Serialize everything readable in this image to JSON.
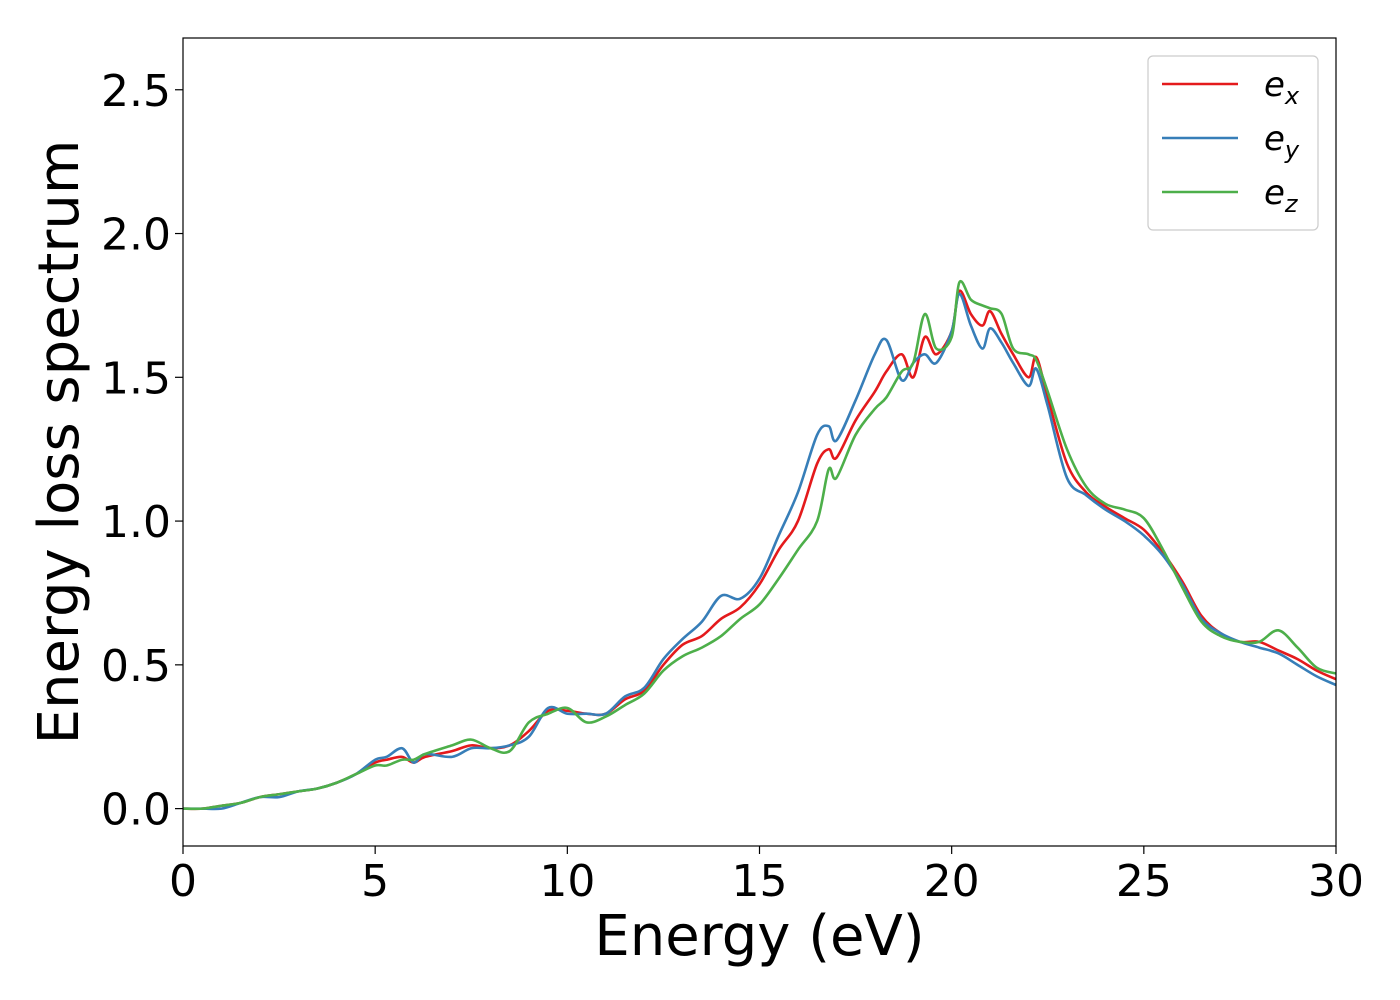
{
  "chart_data": {
    "type": "line",
    "title": "",
    "xlabel": "Energy (eV)",
    "ylabel": "Energy loss spectrum",
    "xlim": [
      0,
      30
    ],
    "ylim": [
      -0.13,
      2.68
    ],
    "xticks": [
      0,
      5,
      10,
      15,
      20,
      25,
      30
    ],
    "xtick_labels": [
      "0",
      "5",
      "10",
      "15",
      "20",
      "25",
      "30"
    ],
    "yticks": [
      0.0,
      0.5,
      1.0,
      1.5,
      2.0,
      2.5
    ],
    "ytick_labels": [
      "0.0",
      "0.5",
      "1.0",
      "1.5",
      "2.0",
      "2.5"
    ],
    "grid": false,
    "legend_position": "top-right",
    "series": [
      {
        "name": "e",
        "subscript": "x",
        "color": "#e41a1c",
        "x": [
          0,
          0.5,
          1,
          1.5,
          2,
          2.5,
          3,
          3.5,
          4,
          4.5,
          5,
          5.3,
          5.7,
          6,
          6.3,
          7,
          7.5,
          8,
          8.5,
          9,
          9.5,
          10,
          10.5,
          11,
          11.5,
          12,
          12.5,
          13,
          13.5,
          14,
          14.5,
          15,
          15.5,
          16,
          16.5,
          16.8,
          17,
          17.5,
          18,
          18.3,
          18.7,
          19,
          19.3,
          19.6,
          20,
          20.2,
          20.5,
          20.8,
          21,
          21.3,
          21.6,
          22,
          22.2,
          22.5,
          23,
          23.5,
          24,
          24.5,
          25,
          25.5,
          26,
          26.5,
          27,
          27.5,
          28,
          28.5,
          29,
          29.5,
          30
        ],
        "y": [
          0.0,
          0.0,
          0.01,
          0.02,
          0.04,
          0.05,
          0.06,
          0.07,
          0.09,
          0.12,
          0.16,
          0.17,
          0.18,
          0.16,
          0.18,
          0.2,
          0.22,
          0.21,
          0.22,
          0.27,
          0.34,
          0.34,
          0.33,
          0.33,
          0.38,
          0.41,
          0.5,
          0.57,
          0.6,
          0.66,
          0.7,
          0.78,
          0.9,
          1.0,
          1.2,
          1.25,
          1.22,
          1.35,
          1.45,
          1.52,
          1.58,
          1.5,
          1.64,
          1.58,
          1.66,
          1.8,
          1.72,
          1.68,
          1.73,
          1.65,
          1.58,
          1.5,
          1.57,
          1.43,
          1.2,
          1.1,
          1.05,
          1.01,
          0.97,
          0.89,
          0.79,
          0.67,
          0.61,
          0.58,
          0.58,
          0.55,
          0.52,
          0.48,
          0.45
        ]
      },
      {
        "name": "e",
        "subscript": "y",
        "color": "#377eb8",
        "x": [
          0,
          0.5,
          1,
          1.5,
          2,
          2.5,
          3,
          3.5,
          4,
          4.5,
          5,
          5.3,
          5.7,
          6,
          6.3,
          7,
          7.5,
          8,
          8.5,
          9,
          9.5,
          10,
          10.5,
          11,
          11.5,
          12,
          12.5,
          13,
          13.5,
          14,
          14.5,
          15,
          15.5,
          16,
          16.5,
          16.8,
          17,
          17.5,
          18,
          18.3,
          18.7,
          19,
          19.3,
          19.6,
          20,
          20.2,
          20.5,
          20.8,
          21,
          21.3,
          21.6,
          22,
          22.2,
          22.5,
          23,
          23.5,
          24,
          24.5,
          25,
          25.5,
          26,
          26.5,
          27,
          27.5,
          28,
          28.5,
          29,
          29.5,
          30
        ],
        "y": [
          0.0,
          0.0,
          0.0,
          0.02,
          0.04,
          0.04,
          0.06,
          0.07,
          0.09,
          0.12,
          0.17,
          0.18,
          0.21,
          0.16,
          0.19,
          0.18,
          0.21,
          0.21,
          0.22,
          0.25,
          0.35,
          0.33,
          0.33,
          0.33,
          0.39,
          0.42,
          0.52,
          0.59,
          0.65,
          0.74,
          0.73,
          0.8,
          0.95,
          1.1,
          1.3,
          1.33,
          1.28,
          1.42,
          1.58,
          1.63,
          1.49,
          1.55,
          1.58,
          1.55,
          1.66,
          1.79,
          1.68,
          1.6,
          1.67,
          1.62,
          1.55,
          1.47,
          1.53,
          1.4,
          1.15,
          1.09,
          1.04,
          1.0,
          0.95,
          0.88,
          0.78,
          0.66,
          0.61,
          0.58,
          0.56,
          0.54,
          0.5,
          0.46,
          0.43
        ]
      },
      {
        "name": "e",
        "subscript": "z",
        "color": "#4daf4a",
        "x": [
          0,
          0.5,
          1,
          1.5,
          2,
          2.5,
          3,
          3.5,
          4,
          4.5,
          5,
          5.3,
          5.7,
          6,
          6.3,
          7,
          7.5,
          8,
          8.5,
          9,
          9.5,
          10,
          10.5,
          11,
          11.5,
          12,
          12.5,
          13,
          13.5,
          14,
          14.5,
          15,
          15.5,
          16,
          16.5,
          16.8,
          17,
          17.5,
          18,
          18.3,
          18.7,
          19,
          19.3,
          19.6,
          20,
          20.2,
          20.5,
          20.8,
          21,
          21.3,
          21.6,
          22,
          22.2,
          22.5,
          23,
          23.5,
          24,
          24.5,
          25,
          25.5,
          26,
          26.5,
          27,
          27.5,
          28,
          28.5,
          29,
          29.5,
          30
        ],
        "y": [
          0.0,
          0.0,
          0.01,
          0.02,
          0.04,
          0.05,
          0.06,
          0.07,
          0.09,
          0.12,
          0.15,
          0.15,
          0.17,
          0.17,
          0.19,
          0.22,
          0.24,
          0.21,
          0.2,
          0.3,
          0.33,
          0.35,
          0.3,
          0.32,
          0.36,
          0.4,
          0.48,
          0.53,
          0.56,
          0.6,
          0.66,
          0.71,
          0.8,
          0.9,
          1.0,
          1.18,
          1.15,
          1.3,
          1.39,
          1.43,
          1.52,
          1.55,
          1.72,
          1.6,
          1.64,
          1.83,
          1.77,
          1.75,
          1.74,
          1.72,
          1.6,
          1.58,
          1.56,
          1.45,
          1.25,
          1.12,
          1.06,
          1.04,
          1.01,
          0.9,
          0.77,
          0.65,
          0.6,
          0.58,
          0.58,
          0.62,
          0.56,
          0.49,
          0.47
        ]
      }
    ]
  }
}
